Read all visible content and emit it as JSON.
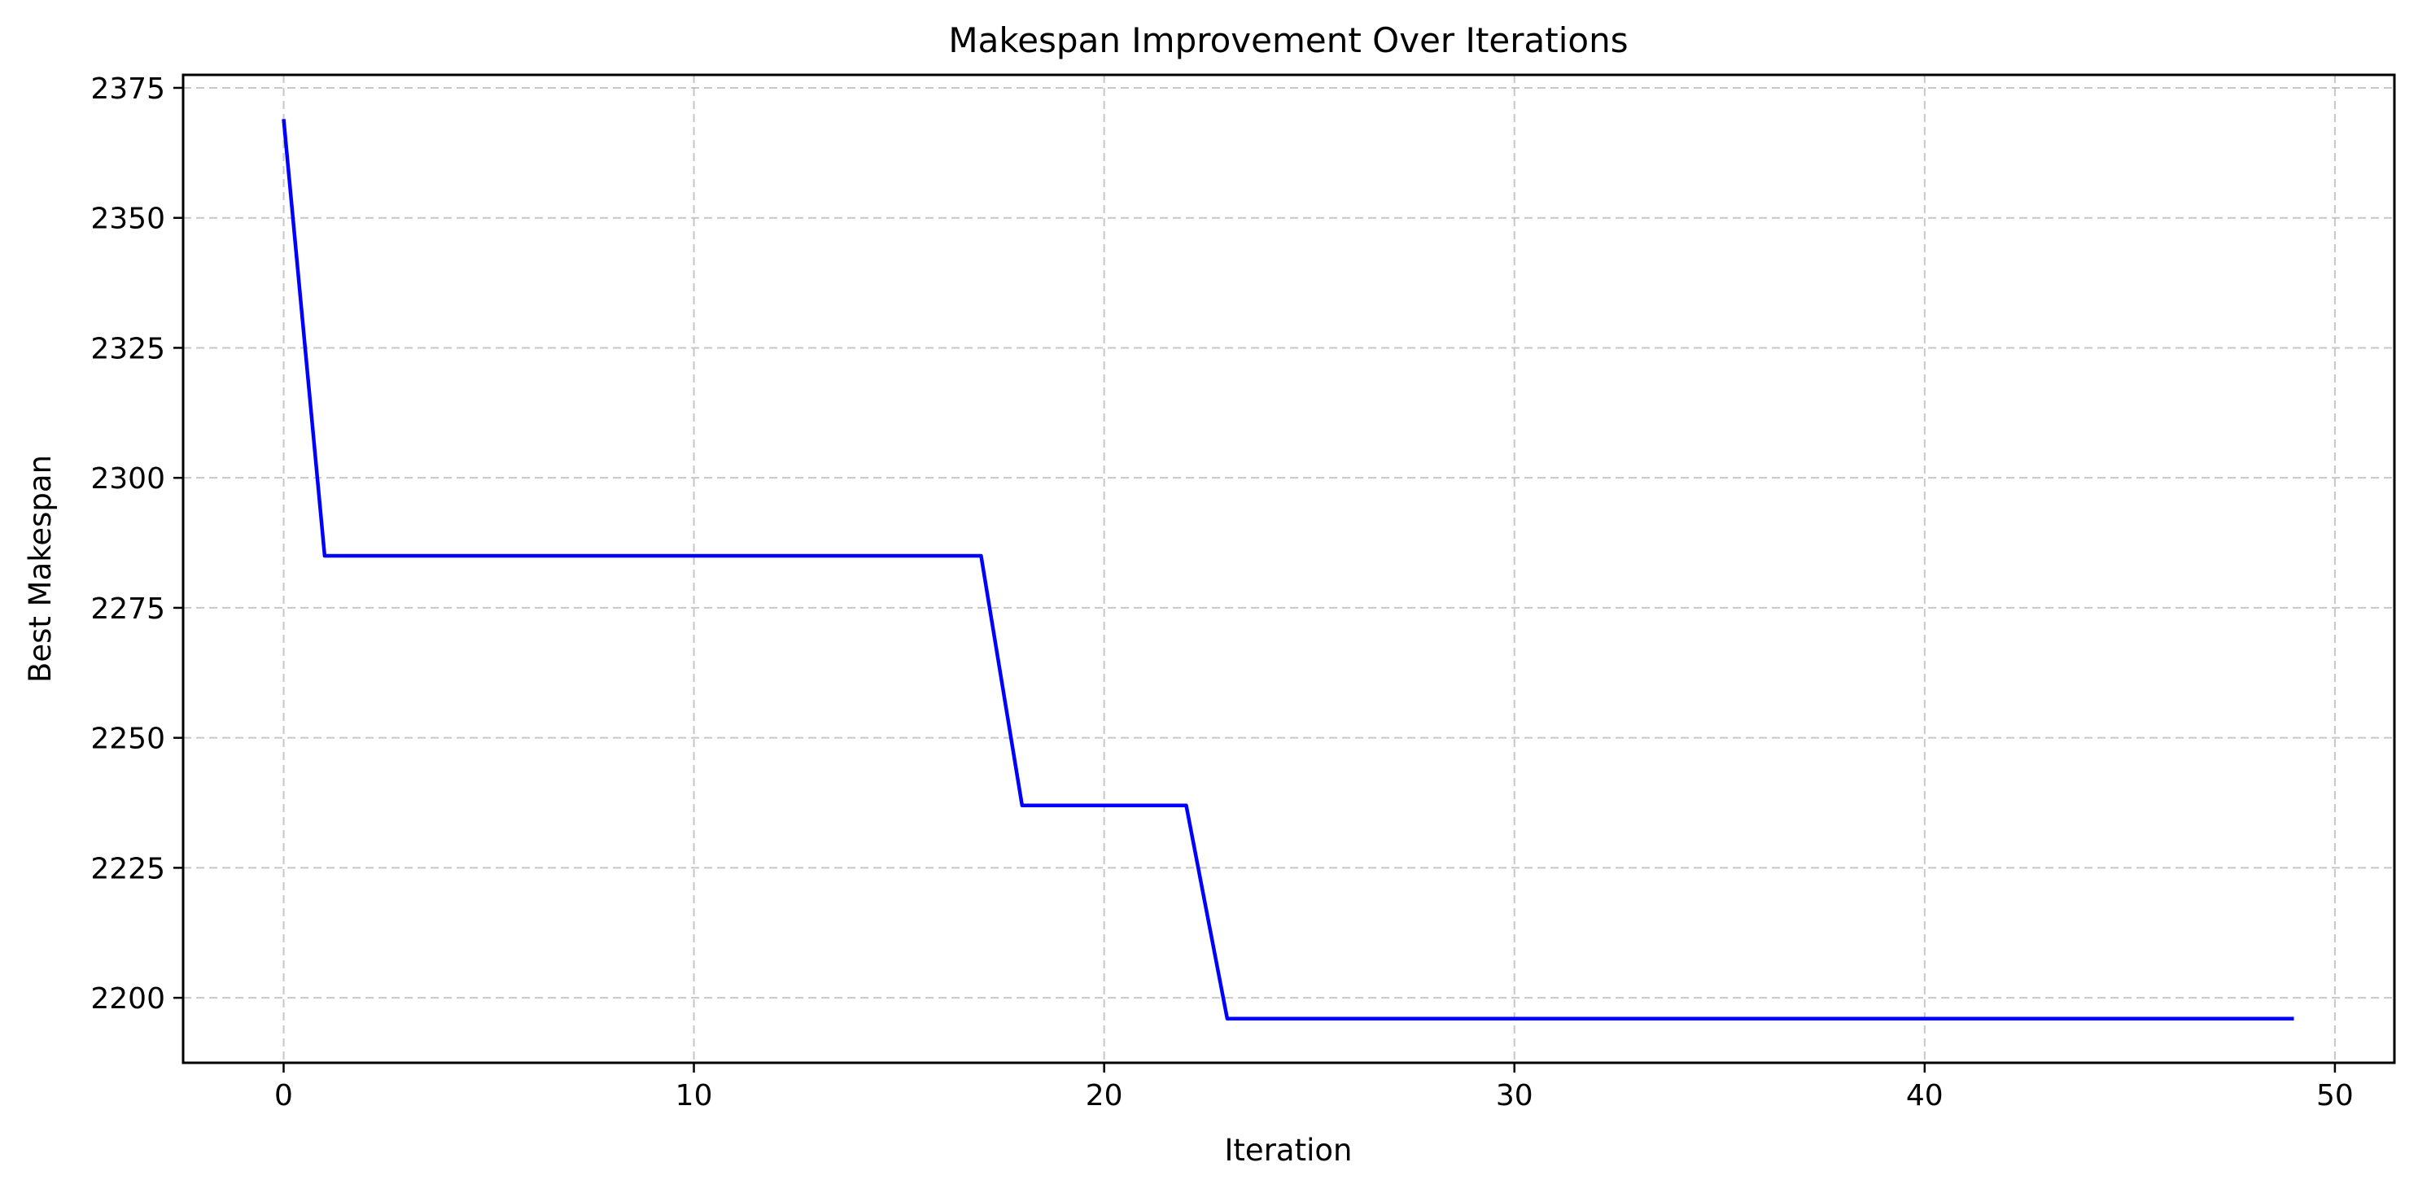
{
  "chart_data": {
    "type": "line",
    "title": "Makespan Improvement Over Iterations",
    "xlabel": "Iteration",
    "ylabel": "Best Makespan",
    "xlim": [
      -2.45,
      51.45
    ],
    "ylim": [
      2187.5,
      2377.5
    ],
    "xticks": [
      0,
      10,
      20,
      30,
      40,
      50
    ],
    "yticks": [
      2200,
      2225,
      2250,
      2275,
      2300,
      2325,
      2350,
      2375
    ],
    "grid": true,
    "grid_style": "dashed",
    "series": [
      {
        "color": "#0000ff",
        "x": [
          0,
          1,
          2,
          3,
          4,
          5,
          6,
          7,
          8,
          9,
          10,
          11,
          12,
          13,
          14,
          15,
          16,
          17,
          18,
          19,
          20,
          21,
          22,
          23,
          24,
          25,
          26,
          27,
          28,
          29,
          30,
          31,
          32,
          33,
          34,
          35,
          36,
          37,
          38,
          39,
          40,
          41,
          42,
          43,
          44,
          45,
          46,
          47,
          48,
          49
        ],
        "values": [
          2369,
          2285,
          2285,
          2285,
          2285,
          2285,
          2285,
          2285,
          2285,
          2285,
          2285,
          2285,
          2285,
          2285,
          2285,
          2285,
          2285,
          2285,
          2237,
          2237,
          2237,
          2237,
          2237,
          2196,
          2196,
          2196,
          2196,
          2196,
          2196,
          2196,
          2196,
          2196,
          2196,
          2196,
          2196,
          2196,
          2196,
          2196,
          2196,
          2196,
          2196,
          2196,
          2196,
          2196,
          2196,
          2196,
          2196,
          2196,
          2196,
          2196
        ]
      }
    ]
  }
}
